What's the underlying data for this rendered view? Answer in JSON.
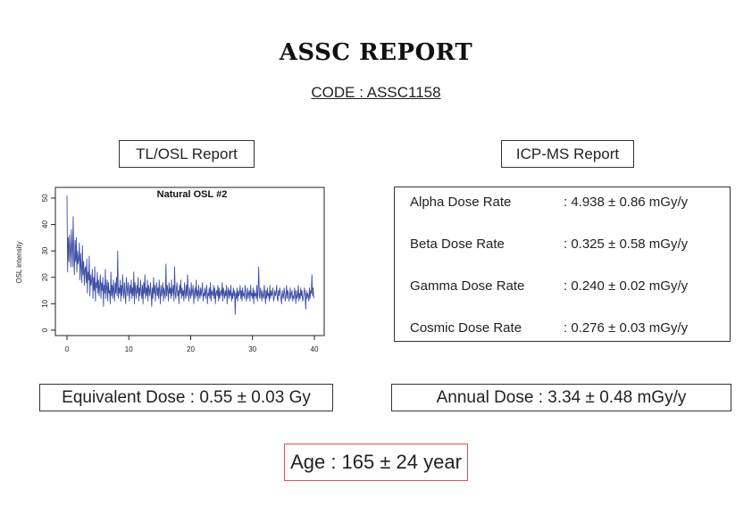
{
  "report": {
    "title": "ASSC REPORT",
    "code": "CODE : ASSC1158"
  },
  "tlosl": {
    "heading": "TL/OSL Report"
  },
  "icpms": {
    "heading": "ICP-MS Report",
    "rows": [
      {
        "label": "Alpha Dose Rate",
        "value": ": 4.938 ± 0.86 mGy/y"
      },
      {
        "label": "Beta Dose Rate",
        "value": ": 0.325 ± 0.58 mGy/y"
      },
      {
        "label": "Gamma Dose Rate",
        "value": ": 0.240 ± 0.02 mGy/y"
      },
      {
        "label": "Cosmic Dose Rate",
        "value": ": 0.276 ± 0.03 mGy/y"
      }
    ]
  },
  "results": {
    "equivalent_dose": "Equivalent Dose : 0.55 ± 0.03 Gy",
    "annual_dose": "Annual Dose : 3.34 ± 0.48 mGy/y",
    "age": "Age : 165 ± 24 year"
  },
  "colors": {
    "series": "#3f4fa3",
    "age_border": "#d95555"
  },
  "chart_data": {
    "type": "line",
    "title": "Natural OSL #2",
    "xlabel": "",
    "ylabel": "OSL intensity",
    "xlim": [
      0,
      40
    ],
    "ylim": [
      0,
      52
    ],
    "x_ticks": [
      0,
      10,
      20,
      30,
      40
    ],
    "y_ticks": [
      0,
      10,
      20,
      30,
      40,
      50
    ],
    "grid": false,
    "series": [
      {
        "x_start": 0,
        "x_step": 0.1,
        "values": [
          51,
          22,
          35,
          26,
          36,
          30,
          24,
          38,
          31,
          24,
          43,
          28,
          21,
          34,
          26,
          35,
          22,
          30,
          25,
          27,
          33,
          19,
          29,
          24,
          18,
          32,
          21,
          26,
          17,
          23,
          24,
          18,
          27,
          14,
          22,
          19,
          28,
          13,
          21,
          17,
          19,
          23,
          12,
          20,
          15,
          24,
          11,
          18,
          16,
          22,
          14,
          19,
          13,
          17,
          21,
          12,
          18,
          15,
          20,
          9,
          17,
          14,
          23,
          12,
          16,
          19,
          11,
          18,
          14,
          15,
          10,
          22,
          13,
          17,
          12,
          19,
          15,
          11,
          18,
          14,
          20,
          13,
          30,
          12,
          16,
          14,
          19,
          11,
          17,
          13,
          21,
          15,
          12,
          18,
          14,
          10,
          20,
          16,
          13,
          18,
          15,
          11,
          17,
          14,
          19,
          12,
          16,
          13,
          22,
          10,
          18,
          15,
          12,
          17,
          14,
          20,
          11,
          16,
          13,
          19,
          15,
          12,
          17,
          10,
          18,
          14,
          21,
          12,
          16,
          13,
          19,
          11,
          17,
          15,
          13,
          18,
          14,
          9,
          16,
          12,
          20,
          14,
          17,
          11,
          15,
          18,
          13,
          16,
          12,
          19,
          14,
          10,
          17,
          13,
          15,
          18,
          11,
          16,
          14,
          12,
          25,
          13,
          17,
          15,
          11,
          18,
          14,
          16,
          12,
          19,
          13,
          15,
          17,
          11,
          24,
          14,
          12,
          16,
          18,
          13,
          15,
          10,
          17,
          14,
          19,
          12,
          16,
          13,
          15,
          11,
          18,
          14,
          12,
          17,
          13,
          21,
          15,
          11,
          16,
          14,
          12,
          18,
          13,
          15,
          17,
          10,
          14,
          16,
          12,
          19,
          13,
          15,
          11,
          17,
          14,
          12,
          16,
          13,
          15,
          18,
          11,
          14,
          13,
          16,
          12,
          15,
          17,
          10,
          14,
          13,
          16,
          12,
          18,
          11,
          15,
          14,
          13,
          17,
          12,
          16,
          10,
          14,
          15,
          13,
          17,
          11,
          16,
          12,
          14,
          15,
          13,
          18,
          11,
          16,
          14,
          12,
          15,
          13,
          17,
          10,
          14,
          16,
          12,
          15,
          13,
          17,
          11,
          14,
          12,
          16,
          13,
          15,
          6,
          14,
          12,
          16,
          11,
          15,
          13,
          14,
          17,
          12,
          15,
          11,
          16,
          13,
          14,
          12,
          17,
          15,
          11,
          13,
          16,
          12,
          14,
          15,
          11,
          17,
          13,
          14,
          12,
          16,
          10,
          15,
          13,
          14,
          12,
          17,
          11,
          15,
          24,
          13,
          12,
          16,
          14,
          11,
          15,
          13,
          12,
          17,
          14,
          10,
          15,
          12,
          16,
          13,
          14,
          11,
          17,
          12,
          15,
          13,
          14,
          16,
          11,
          12,
          15,
          13,
          14,
          17,
          12,
          11,
          15,
          13,
          16,
          14,
          12,
          10,
          15,
          13,
          12,
          16,
          14,
          11,
          13,
          17,
          12,
          15,
          14,
          11,
          13,
          16,
          12,
          14,
          15,
          11,
          13,
          12,
          16,
          14,
          10,
          15,
          12,
          13,
          17,
          11,
          14,
          12,
          16,
          13,
          15,
          11,
          12,
          14,
          16,
          13,
          8,
          15,
          12,
          14,
          13,
          11,
          16,
          12,
          15,
          14,
          21,
          13,
          16,
          12
        ]
      }
    ]
  }
}
